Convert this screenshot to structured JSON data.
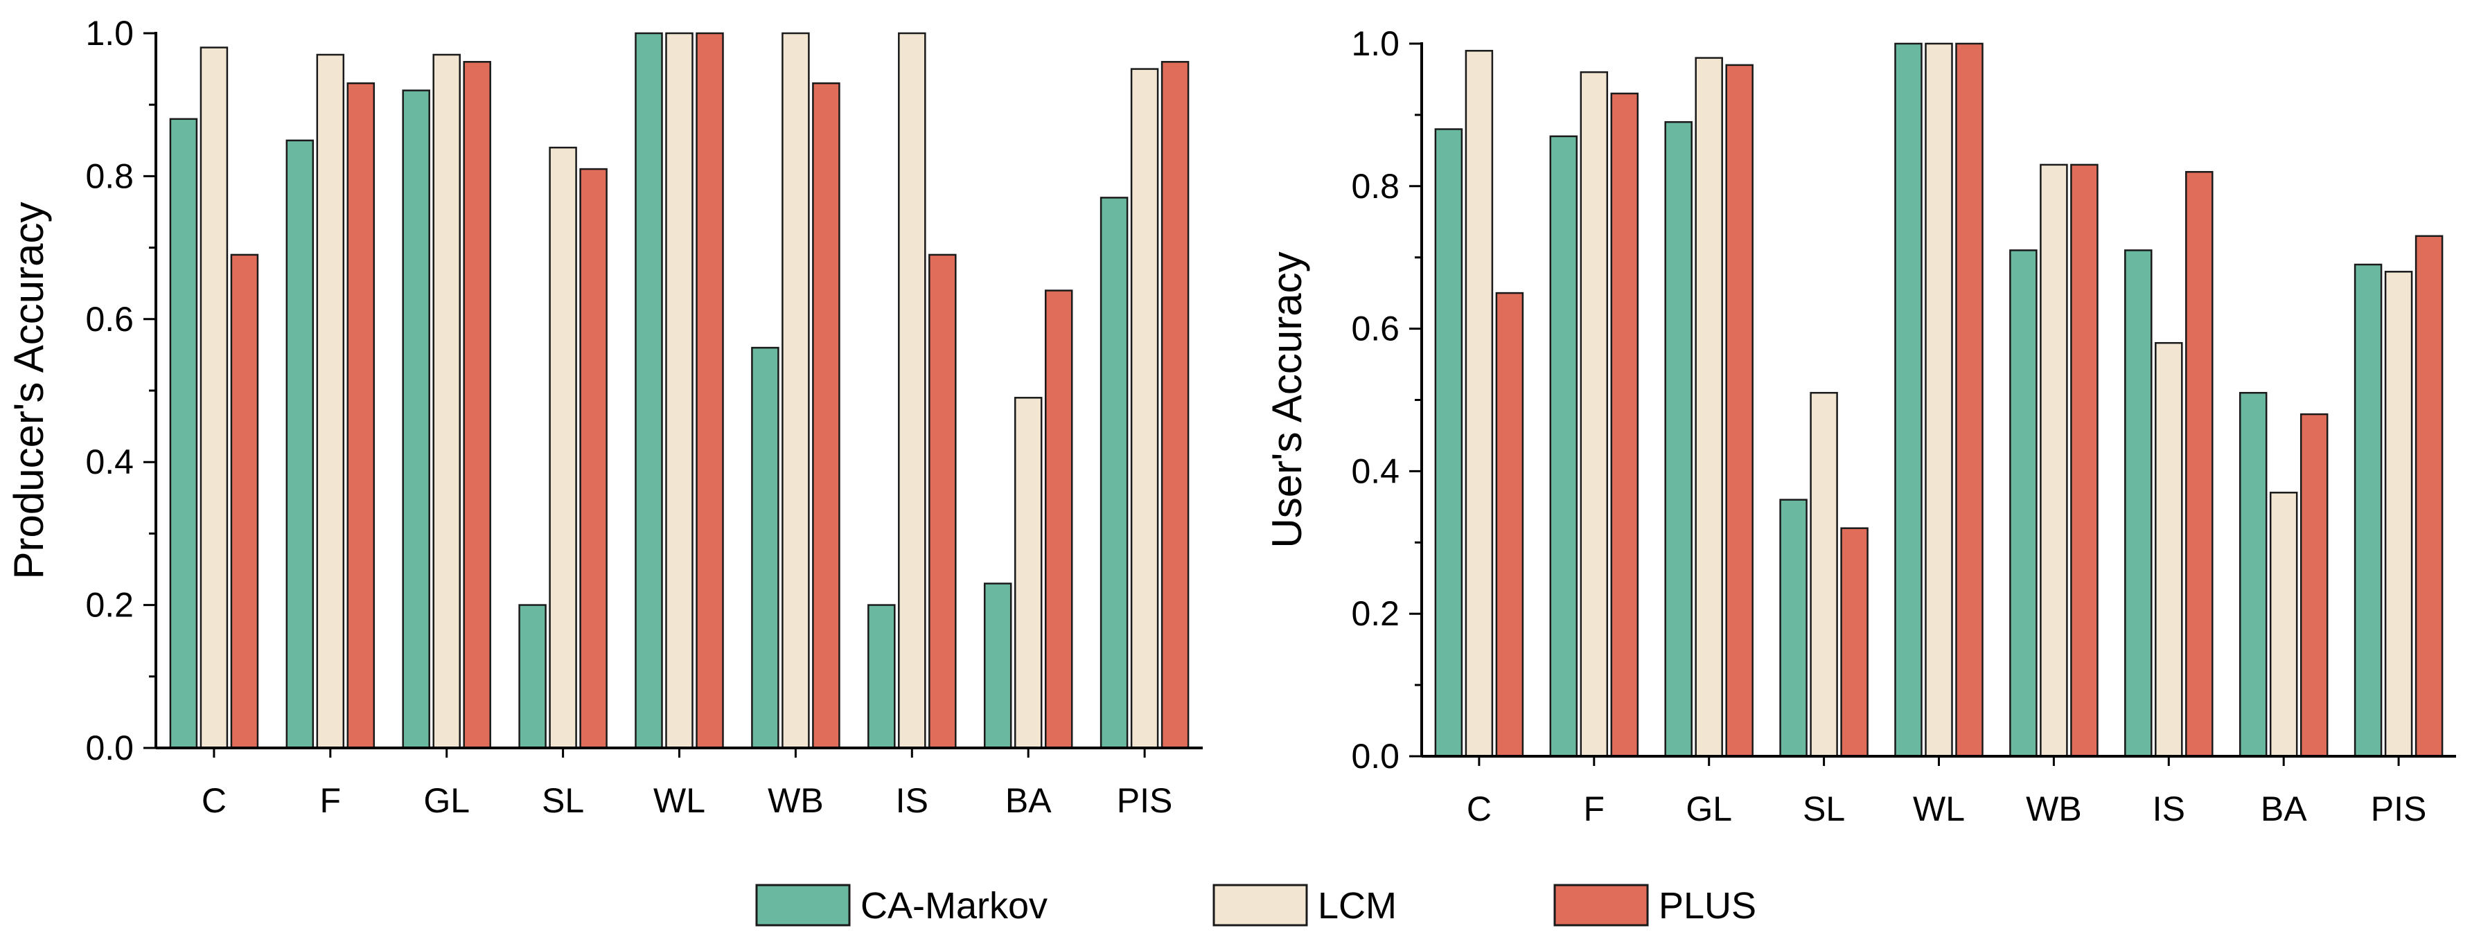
{
  "legend": {
    "position": "bottom-center",
    "items": [
      {
        "name": "CA-Markov",
        "color": "#6bb8a0"
      },
      {
        "name": "LCM",
        "color": "#f2e6d3"
      },
      {
        "name": "PLUS",
        "color": "#e06c5a"
      }
    ]
  },
  "chart_data": [
    {
      "type": "bar",
      "title": "",
      "xlabel": "",
      "ylabel": "Producer's Accuracy",
      "ylim": [
        0,
        1.0
      ],
      "yticks": [
        "0.0",
        "0.2",
        "0.4",
        "0.6",
        "0.8",
        "1.0"
      ],
      "grid": false,
      "categories": [
        "C",
        "F",
        "GL",
        "SL",
        "WL",
        "WB",
        "IS",
        "BA",
        "PIS"
      ],
      "series": [
        {
          "name": "CA-Markov",
          "color": "#6bb8a0",
          "values": [
            0.88,
            0.85,
            0.92,
            0.2,
            1.0,
            0.56,
            0.2,
            0.23,
            0.77
          ]
        },
        {
          "name": "LCM",
          "color": "#f2e6d3",
          "values": [
            0.98,
            0.97,
            0.97,
            0.84,
            1.0,
            1.0,
            1.0,
            0.49,
            0.95
          ]
        },
        {
          "name": "PLUS",
          "color": "#e06c5a",
          "values": [
            0.69,
            0.93,
            0.96,
            0.81,
            1.0,
            0.93,
            0.69,
            0.64,
            0.96
          ]
        }
      ]
    },
    {
      "type": "bar",
      "title": "",
      "xlabel": "",
      "ylabel": "User's Accuracy",
      "ylim": [
        0,
        1.0
      ],
      "yticks": [
        "0.0",
        "0.2",
        "0.4",
        "0.6",
        "0.8",
        "1.0"
      ],
      "grid": false,
      "categories": [
        "C",
        "F",
        "GL",
        "SL",
        "WL",
        "WB",
        "IS",
        "BA",
        "PIS"
      ],
      "series": [
        {
          "name": "CA-Markov",
          "color": "#6bb8a0",
          "values": [
            0.88,
            0.87,
            0.89,
            0.36,
            1.0,
            0.71,
            0.71,
            0.51,
            0.69
          ]
        },
        {
          "name": "LCM",
          "color": "#f2e6d3",
          "values": [
            0.99,
            0.96,
            0.98,
            0.51,
            1.0,
            0.83,
            0.58,
            0.37,
            0.68
          ]
        },
        {
          "name": "PLUS",
          "color": "#e06c5a",
          "values": [
            0.65,
            0.93,
            0.97,
            0.32,
            1.0,
            0.83,
            0.82,
            0.48,
            0.73
          ]
        }
      ]
    }
  ]
}
